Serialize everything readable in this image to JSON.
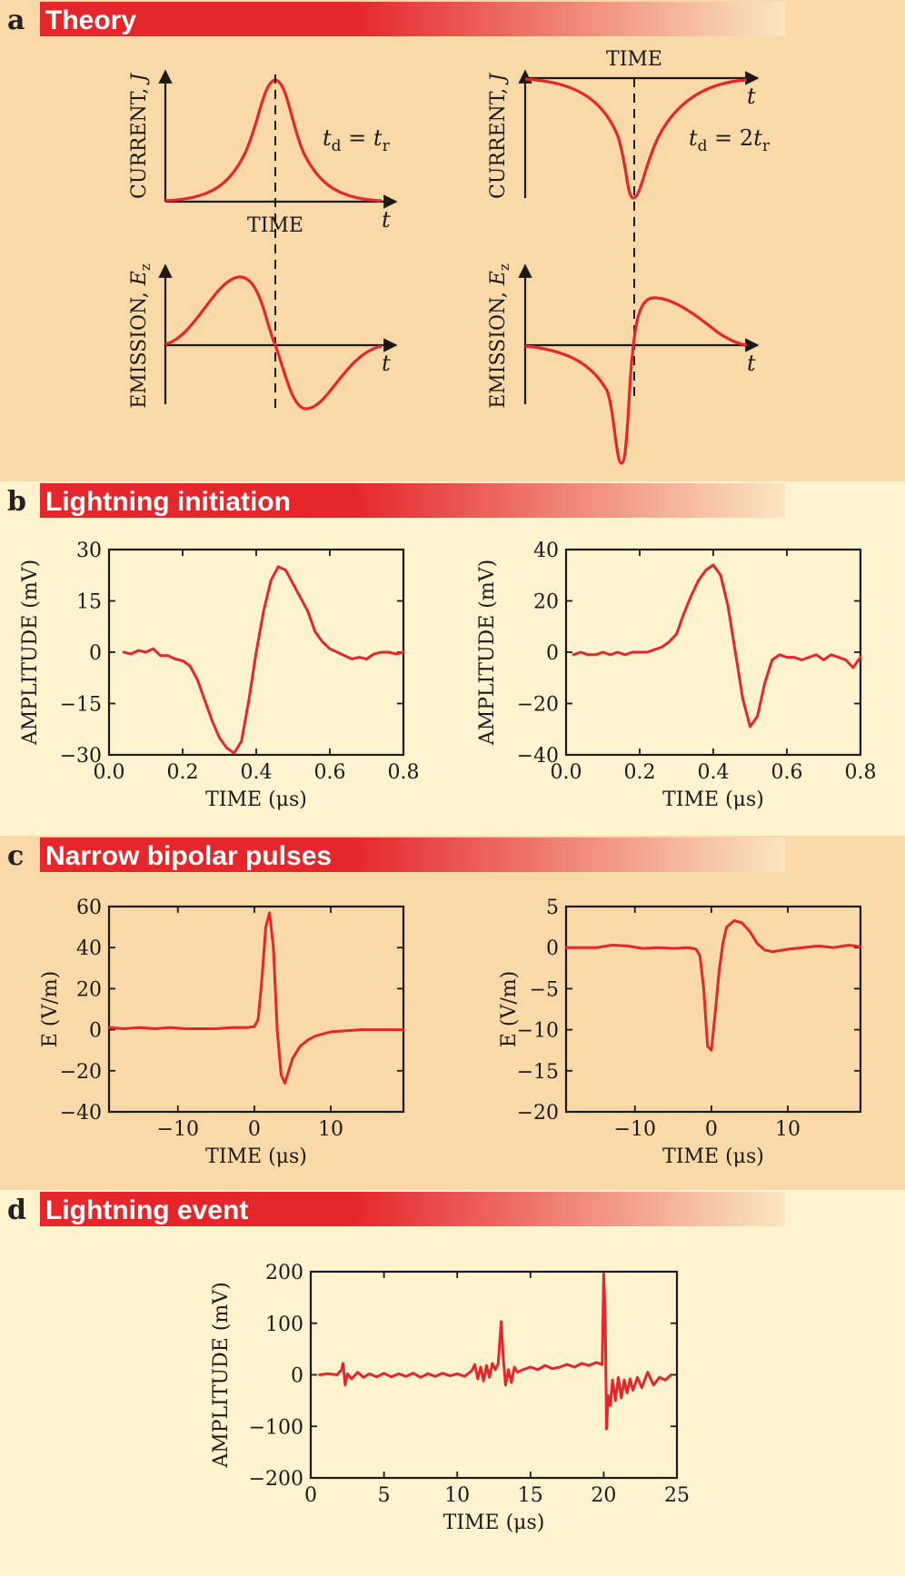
{
  "colors": {
    "accent": "#e5262b",
    "background_dark": "#f9d9a8",
    "background_light": "#fdf3cf",
    "banner_fade": "#fbe6c2",
    "ink": "#1a1a1a"
  },
  "sections": {
    "a": {
      "letter": "a",
      "title": "Theory"
    },
    "b": {
      "letter": "b",
      "title": "Lightning initiation"
    },
    "c": {
      "letter": "c",
      "title": "Narrow bipolar pulses"
    },
    "d": {
      "letter": "d",
      "title": "Lightning event"
    }
  },
  "theory": {
    "time_word": "TIME",
    "t_symbol": "t",
    "current_label": "CURRENT, ",
    "current_symbol": "J",
    "emission_label": "EMISSION, ",
    "emission_symbol": "E",
    "emission_subscript": "z",
    "left_relation_lhs": "t",
    "left_relation_sub": "d",
    "left_relation_eq": " = ",
    "left_relation_rhs": "t",
    "left_relation_rhs_sub": "r",
    "right_relation_lhs": "t",
    "right_relation_sub": "d",
    "right_relation_eq": " = 2",
    "right_relation_rhs": "t",
    "right_relation_rhs_sub": "r"
  },
  "chart_data": [
    {
      "id": "b_left",
      "type": "line",
      "xlabel": "TIME (μs)",
      "ylabel": "AMPLITUDE (mV)",
      "xlim": [
        0.0,
        0.8
      ],
      "ylim": [
        -30,
        30
      ],
      "xticks": [
        0.0,
        0.2,
        0.4,
        0.6,
        0.8
      ],
      "xtick_labels": [
        "0.0",
        "0.2",
        "0.4",
        "0.6",
        "0.8"
      ],
      "yticks": [
        -30,
        -15,
        0,
        15,
        30
      ],
      "ytick_labels": [
        "−30",
        "−15",
        "0",
        "15",
        "30"
      ],
      "x": [
        0.04,
        0.06,
        0.08,
        0.1,
        0.12,
        0.14,
        0.16,
        0.18,
        0.2,
        0.22,
        0.24,
        0.26,
        0.28,
        0.3,
        0.32,
        0.34,
        0.36,
        0.38,
        0.4,
        0.42,
        0.44,
        0.46,
        0.48,
        0.5,
        0.52,
        0.54,
        0.56,
        0.58,
        0.6,
        0.62,
        0.64,
        0.66,
        0.68,
        0.7,
        0.72,
        0.74,
        0.76,
        0.78,
        0.8
      ],
      "y": [
        0,
        -0.5,
        0.5,
        0,
        1,
        -1,
        -1,
        -2,
        -2.5,
        -4,
        -8,
        -14,
        -20,
        -25,
        -28,
        -29.5,
        -26,
        -14,
        0,
        12,
        21,
        25,
        24,
        20,
        16,
        12,
        6,
        3,
        1,
        0,
        -1,
        -2,
        -1.5,
        -2,
        -0.5,
        0,
        0,
        -0.5,
        0
      ],
      "series_color": "#e5262b"
    },
    {
      "id": "b_right",
      "type": "line",
      "xlabel": "TIME (μs)",
      "ylabel": "AMPLITUDE (mV)",
      "xlim": [
        0.0,
        0.8
      ],
      "ylim": [
        -40,
        40
      ],
      "xticks": [
        0.0,
        0.2,
        0.4,
        0.6,
        0.8
      ],
      "xtick_labels": [
        "0.0",
        "0.2",
        "0.4",
        "0.6",
        "0.8"
      ],
      "yticks": [
        -40,
        -20,
        0,
        20,
        40
      ],
      "ytick_labels": [
        "−40",
        "−20",
        "0",
        "20",
        "40"
      ],
      "x": [
        0.02,
        0.04,
        0.06,
        0.08,
        0.1,
        0.12,
        0.14,
        0.16,
        0.18,
        0.2,
        0.22,
        0.24,
        0.26,
        0.28,
        0.3,
        0.32,
        0.34,
        0.36,
        0.38,
        0.4,
        0.42,
        0.44,
        0.46,
        0.48,
        0.5,
        0.52,
        0.54,
        0.56,
        0.58,
        0.6,
        0.62,
        0.64,
        0.66,
        0.68,
        0.7,
        0.72,
        0.74,
        0.76,
        0.78,
        0.8
      ],
      "y": [
        -1,
        0,
        -1,
        -1,
        0,
        -1,
        0,
        -1,
        0,
        0,
        0,
        1,
        2,
        4,
        7,
        15,
        22,
        28,
        32,
        34,
        30,
        18,
        0,
        -18,
        -29,
        -25,
        -12,
        -3,
        -1,
        -2,
        -2,
        -3,
        -2,
        -1,
        -3,
        -1,
        -2,
        -3,
        -6,
        -2
      ],
      "series_color": "#e5262b"
    },
    {
      "id": "c_left",
      "type": "line",
      "xlabel": "TIME (μs)",
      "ylabel": "E (V/m)",
      "xlim": [
        -19,
        19.5
      ],
      "ylim": [
        -40,
        60
      ],
      "xticks": [
        -10,
        0,
        10
      ],
      "xtick_labels": [
        "−10",
        "0",
        "10"
      ],
      "yticks": [
        -40,
        -20,
        0,
        20,
        40,
        60
      ],
      "ytick_labels": [
        "−40",
        "−20",
        "0",
        "20",
        "40",
        "60"
      ],
      "x": [
        -19,
        -17,
        -15,
        -13,
        -11,
        -9,
        -7,
        -5,
        -3,
        -1,
        0,
        0.5,
        1,
        1.5,
        2,
        2.5,
        3,
        3.5,
        4,
        4.5,
        5,
        6,
        7,
        8,
        10,
        12,
        14,
        16,
        18,
        19.5
      ],
      "y": [
        1,
        0.5,
        1,
        0.5,
        1,
        0.5,
        0.5,
        0.5,
        1,
        1,
        1.5,
        5,
        25,
        50,
        57,
        40,
        0,
        -22,
        -26,
        -20,
        -14,
        -8,
        -5,
        -3,
        -1,
        -0.5,
        0,
        0,
        0,
        0
      ],
      "series_color": "#e5262b"
    },
    {
      "id": "c_right",
      "type": "line",
      "xlabel": "TIME (μs)",
      "ylabel": "E (V/m)",
      "xlim": [
        -19,
        19.5
      ],
      "ylim": [
        -20,
        5
      ],
      "xticks": [
        -10,
        0,
        10
      ],
      "xtick_labels": [
        "−10",
        "0",
        "10"
      ],
      "yticks": [
        -20,
        -15,
        -10,
        -5,
        0,
        5
      ],
      "ytick_labels": [
        "−20",
        "−15",
        "−10",
        "−5",
        "0",
        "5"
      ],
      "x": [
        -19,
        -17,
        -15,
        -13,
        -11,
        -9,
        -7,
        -5,
        -3,
        -2,
        -1.5,
        -1,
        -0.5,
        0,
        0.5,
        1,
        1.5,
        2,
        3,
        4,
        5,
        6,
        7,
        8,
        10,
        12,
        14,
        16,
        18,
        19.5
      ],
      "y": [
        0,
        0,
        0,
        0.3,
        0.2,
        -0.1,
        0,
        -0.1,
        0,
        -0.2,
        -1,
        -5,
        -12,
        -12.5,
        -8,
        -3,
        0.5,
        2.5,
        3.3,
        3,
        2,
        0.5,
        -0.3,
        -0.5,
        -0.2,
        0,
        0.2,
        0,
        0.3,
        0.1
      ],
      "series_color": "#e5262b"
    },
    {
      "id": "d",
      "type": "line",
      "xlabel": "TIME (μs)",
      "ylabel": "AMPLITUDE (mV)",
      "xlim": [
        0,
        25
      ],
      "ylim": [
        -200,
        200
      ],
      "xticks": [
        0,
        5,
        10,
        15,
        20,
        25
      ],
      "xtick_labels": [
        "0",
        "5",
        "10",
        "15",
        "20",
        "25"
      ],
      "yticks": [
        -200,
        -100,
        0,
        100,
        200
      ],
      "ytick_labels": [
        "−200",
        "−100",
        "0",
        "100",
        "200"
      ],
      "x": [
        0.6,
        1.2,
        1.8,
        2.1,
        2.2,
        2.35,
        2.5,
        2.8,
        3.2,
        3.6,
        4,
        4.5,
        5,
        5.5,
        6,
        6.5,
        7,
        7.5,
        8,
        8.5,
        9,
        9.5,
        10,
        10.5,
        11,
        11.2,
        11.4,
        11.6,
        11.8,
        12,
        12.2,
        12.4,
        12.6,
        12.8,
        13.0,
        13.15,
        13.3,
        13.5,
        13.7,
        13.9,
        14.1,
        14.5,
        15,
        15.5,
        16,
        16.5,
        17,
        17.5,
        18,
        18.5,
        19,
        19.5,
        19.9,
        20.0,
        20.1,
        20.2,
        20.3,
        20.45,
        20.6,
        20.8,
        21.0,
        21.2,
        21.4,
        21.6,
        21.8,
        22.0,
        22.3,
        22.6,
        23.0,
        23.4,
        23.8,
        24.2,
        24.6
      ],
      "y": [
        0,
        2,
        0,
        10,
        22,
        -20,
        2,
        -8,
        5,
        -5,
        2,
        -4,
        3,
        -4,
        2,
        -3,
        3,
        -5,
        2,
        -3,
        3,
        -2,
        2,
        -3,
        8,
        20,
        -8,
        15,
        -12,
        18,
        -5,
        22,
        10,
        22,
        103,
        30,
        -20,
        10,
        -15,
        15,
        5,
        10,
        15,
        10,
        18,
        12,
        15,
        20,
        15,
        22,
        18,
        24,
        20,
        195,
        120,
        -105,
        -40,
        -60,
        -10,
        -50,
        -5,
        -45,
        -10,
        -35,
        -8,
        -30,
        -5,
        -25,
        5,
        -20,
        -5,
        -10,
        0
      ],
      "series_color": "#e5262b"
    }
  ]
}
